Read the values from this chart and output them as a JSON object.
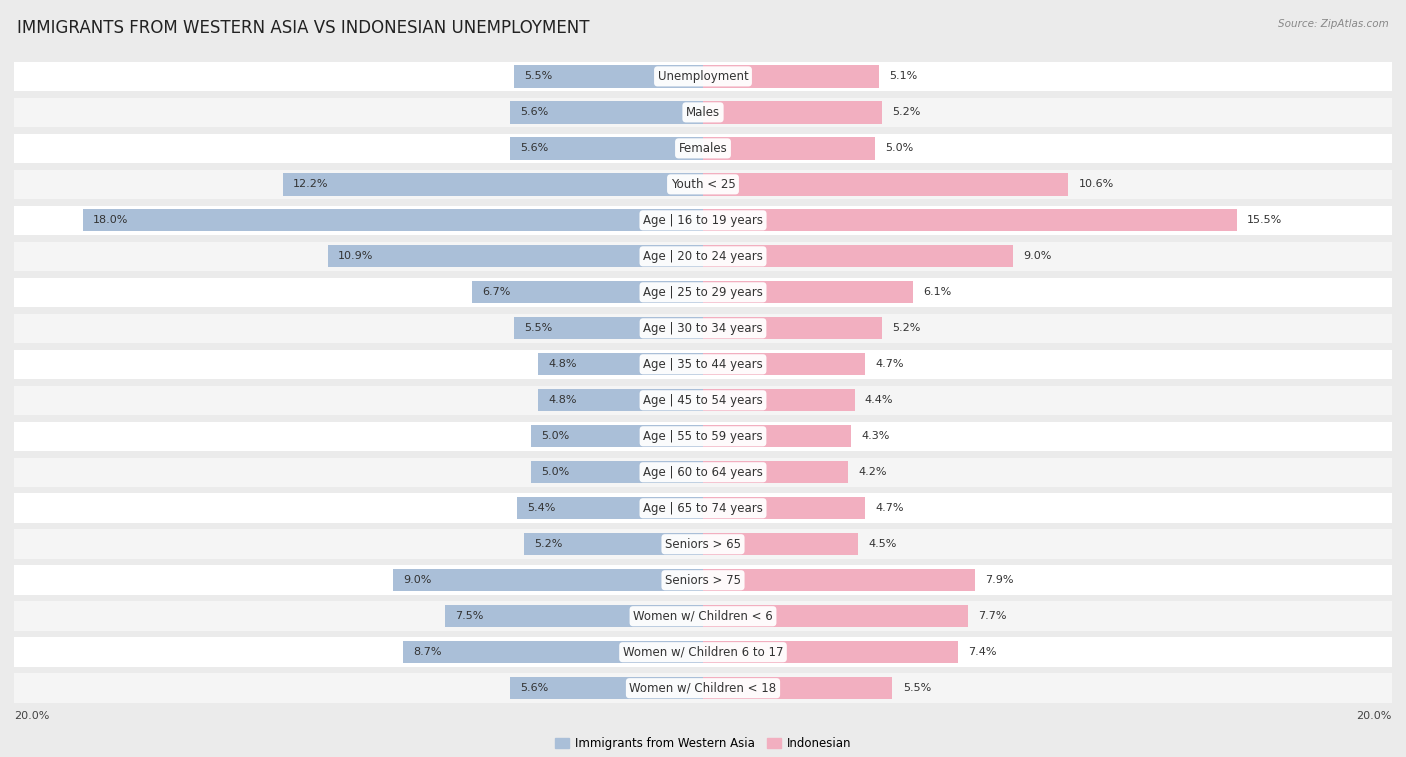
{
  "title": "IMMIGRANTS FROM WESTERN ASIA VS INDONESIAN UNEMPLOYMENT",
  "source": "Source: ZipAtlas.com",
  "categories": [
    "Unemployment",
    "Males",
    "Females",
    "Youth < 25",
    "Age | 16 to 19 years",
    "Age | 20 to 24 years",
    "Age | 25 to 29 years",
    "Age | 30 to 34 years",
    "Age | 35 to 44 years",
    "Age | 45 to 54 years",
    "Age | 55 to 59 years",
    "Age | 60 to 64 years",
    "Age | 65 to 74 years",
    "Seniors > 65",
    "Seniors > 75",
    "Women w/ Children < 6",
    "Women w/ Children 6 to 17",
    "Women w/ Children < 18"
  ],
  "left_values": [
    5.5,
    5.6,
    5.6,
    12.2,
    18.0,
    10.9,
    6.7,
    5.5,
    4.8,
    4.8,
    5.0,
    5.0,
    5.4,
    5.2,
    9.0,
    7.5,
    8.7,
    5.6
  ],
  "right_values": [
    5.1,
    5.2,
    5.0,
    10.6,
    15.5,
    9.0,
    6.1,
    5.2,
    4.7,
    4.4,
    4.3,
    4.2,
    4.7,
    4.5,
    7.9,
    7.7,
    7.4,
    5.5
  ],
  "left_color": "#aabfd8",
  "right_color": "#f2afc0",
  "left_label": "Immigrants from Western Asia",
  "right_label": "Indonesian",
  "xlim": 20.0,
  "bg_color": "#ebebeb",
  "bar_bg_color": "#ffffff",
  "row_bg_color": "#f5f5f5",
  "title_fontsize": 12,
  "label_fontsize": 8.5,
  "value_fontsize": 8,
  "source_fontsize": 7.5
}
